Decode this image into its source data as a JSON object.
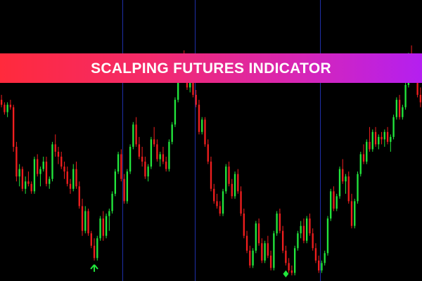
{
  "banner": {
    "title": "SCALPING FUTURES INDICATOR"
  },
  "colors": {
    "background": "#000000",
    "bull": "#22e63c",
    "bear": "#f01e1e",
    "separator": "#1f2fa8",
    "arrow_up": "#22e63c"
  },
  "chart_data": {
    "type": "candlestick",
    "grid": false,
    "ylim": [
      0,
      100
    ],
    "separator_candles": [
      41,
      65,
      107
    ],
    "candles": [
      {
        "o": 71,
        "h": 73,
        "l": 68,
        "c": 69
      },
      {
        "o": 69,
        "h": 70,
        "l": 65,
        "c": 66
      },
      {
        "o": 66,
        "h": 70,
        "l": 64,
        "c": 69
      },
      {
        "o": 69,
        "h": 71,
        "l": 67,
        "c": 68
      },
      {
        "o": 68,
        "h": 69,
        "l": 50,
        "c": 52
      },
      {
        "o": 52,
        "h": 54,
        "l": 38,
        "c": 40
      },
      {
        "o": 40,
        "h": 45,
        "l": 36,
        "c": 43
      },
      {
        "o": 43,
        "h": 44,
        "l": 34,
        "c": 35
      },
      {
        "o": 35,
        "h": 40,
        "l": 33,
        "c": 38
      },
      {
        "o": 38,
        "h": 42,
        "l": 36,
        "c": 37
      },
      {
        "o": 37,
        "h": 38,
        "l": 33,
        "c": 34
      },
      {
        "o": 34,
        "h": 48,
        "l": 33,
        "c": 47
      },
      {
        "o": 47,
        "h": 49,
        "l": 40,
        "c": 41
      },
      {
        "o": 41,
        "h": 44,
        "l": 36,
        "c": 43
      },
      {
        "o": 43,
        "h": 48,
        "l": 42,
        "c": 46
      },
      {
        "o": 46,
        "h": 48,
        "l": 36,
        "c": 37
      },
      {
        "o": 37,
        "h": 40,
        "l": 35,
        "c": 39
      },
      {
        "o": 39,
        "h": 54,
        "l": 38,
        "c": 53
      },
      {
        "o": 53,
        "h": 57,
        "l": 48,
        "c": 50
      },
      {
        "o": 50,
        "h": 52,
        "l": 45,
        "c": 48
      },
      {
        "o": 48,
        "h": 50,
        "l": 43,
        "c": 44
      },
      {
        "o": 44,
        "h": 46,
        "l": 39,
        "c": 42
      },
      {
        "o": 42,
        "h": 44,
        "l": 36,
        "c": 37
      },
      {
        "o": 37,
        "h": 39,
        "l": 33,
        "c": 35
      },
      {
        "o": 35,
        "h": 45,
        "l": 34,
        "c": 43
      },
      {
        "o": 43,
        "h": 46,
        "l": 35,
        "c": 36
      },
      {
        "o": 36,
        "h": 38,
        "l": 27,
        "c": 28
      },
      {
        "o": 28,
        "h": 31,
        "l": 16,
        "c": 18
      },
      {
        "o": 18,
        "h": 28,
        "l": 17,
        "c": 26
      },
      {
        "o": 26,
        "h": 27,
        "l": 16,
        "c": 17
      },
      {
        "o": 17,
        "h": 18,
        "l": 11,
        "c": 12
      },
      {
        "o": 12,
        "h": 15,
        "l": 6,
        "c": 7
      },
      {
        "o": 7,
        "h": 16,
        "l": 6,
        "c": 15
      },
      {
        "o": 15,
        "h": 24,
        "l": 14,
        "c": 23
      },
      {
        "o": 23,
        "h": 26,
        "l": 14,
        "c": 16
      },
      {
        "o": 16,
        "h": 25,
        "l": 15,
        "c": 24
      },
      {
        "o": 24,
        "h": 27,
        "l": 18,
        "c": 26
      },
      {
        "o": 26,
        "h": 34,
        "l": 25,
        "c": 33
      },
      {
        "o": 33,
        "h": 43,
        "l": 32,
        "c": 42
      },
      {
        "o": 42,
        "h": 50,
        "l": 41,
        "c": 49
      },
      {
        "o": 49,
        "h": 51,
        "l": 38,
        "c": 39
      },
      {
        "o": 39,
        "h": 41,
        "l": 29,
        "c": 30
      },
      {
        "o": 30,
        "h": 43,
        "l": 29,
        "c": 42
      },
      {
        "o": 42,
        "h": 53,
        "l": 41,
        "c": 52
      },
      {
        "o": 52,
        "h": 62,
        "l": 51,
        "c": 61
      },
      {
        "o": 61,
        "h": 64,
        "l": 52,
        "c": 53
      },
      {
        "o": 53,
        "h": 56,
        "l": 47,
        "c": 48
      },
      {
        "o": 48,
        "h": 52,
        "l": 44,
        "c": 46
      },
      {
        "o": 46,
        "h": 48,
        "l": 39,
        "c": 40
      },
      {
        "o": 40,
        "h": 45,
        "l": 38,
        "c": 44
      },
      {
        "o": 44,
        "h": 56,
        "l": 43,
        "c": 55
      },
      {
        "o": 55,
        "h": 60,
        "l": 52,
        "c": 53
      },
      {
        "o": 53,
        "h": 55,
        "l": 46,
        "c": 47
      },
      {
        "o": 47,
        "h": 50,
        "l": 44,
        "c": 49
      },
      {
        "o": 49,
        "h": 52,
        "l": 45,
        "c": 46
      },
      {
        "o": 46,
        "h": 48,
        "l": 42,
        "c": 43
      },
      {
        "o": 43,
        "h": 55,
        "l": 42,
        "c": 54
      },
      {
        "o": 54,
        "h": 62,
        "l": 53,
        "c": 61
      },
      {
        "o": 61,
        "h": 72,
        "l": 60,
        "c": 71
      },
      {
        "o": 71,
        "h": 80,
        "l": 70,
        "c": 79
      },
      {
        "o": 79,
        "h": 88,
        "l": 78,
        "c": 87
      },
      {
        "o": 87,
        "h": 91,
        "l": 78,
        "c": 79
      },
      {
        "o": 79,
        "h": 82,
        "l": 75,
        "c": 76
      },
      {
        "o": 76,
        "h": 80,
        "l": 74,
        "c": 78
      },
      {
        "o": 78,
        "h": 81,
        "l": 72,
        "c": 73
      },
      {
        "o": 73,
        "h": 75,
        "l": 68,
        "c": 69
      },
      {
        "o": 69,
        "h": 71,
        "l": 57,
        "c": 58
      },
      {
        "o": 58,
        "h": 64,
        "l": 57,
        "c": 63
      },
      {
        "o": 63,
        "h": 64,
        "l": 52,
        "c": 53
      },
      {
        "o": 53,
        "h": 55,
        "l": 45,
        "c": 46
      },
      {
        "o": 46,
        "h": 48,
        "l": 34,
        "c": 35
      },
      {
        "o": 35,
        "h": 37,
        "l": 29,
        "c": 30
      },
      {
        "o": 30,
        "h": 33,
        "l": 27,
        "c": 28
      },
      {
        "o": 28,
        "h": 30,
        "l": 24,
        "c": 25
      },
      {
        "o": 25,
        "h": 35,
        "l": 24,
        "c": 34
      },
      {
        "o": 34,
        "h": 45,
        "l": 33,
        "c": 44
      },
      {
        "o": 44,
        "h": 46,
        "l": 36,
        "c": 37
      },
      {
        "o": 37,
        "h": 39,
        "l": 31,
        "c": 32
      },
      {
        "o": 32,
        "h": 42,
        "l": 31,
        "c": 41
      },
      {
        "o": 41,
        "h": 43,
        "l": 33,
        "c": 34
      },
      {
        "o": 34,
        "h": 36,
        "l": 24,
        "c": 25
      },
      {
        "o": 25,
        "h": 27,
        "l": 15,
        "c": 16
      },
      {
        "o": 16,
        "h": 18,
        "l": 9,
        "c": 10
      },
      {
        "o": 10,
        "h": 12,
        "l": 3,
        "c": 4
      },
      {
        "o": 4,
        "h": 11,
        "l": 3,
        "c": 10
      },
      {
        "o": 10,
        "h": 22,
        "l": 9,
        "c": 21
      },
      {
        "o": 21,
        "h": 23,
        "l": 12,
        "c": 13
      },
      {
        "o": 13,
        "h": 15,
        "l": 5,
        "c": 6
      },
      {
        "o": 6,
        "h": 14,
        "l": 5,
        "c": 13
      },
      {
        "o": 13,
        "h": 16,
        "l": 7,
        "c": 8
      },
      {
        "o": 8,
        "h": 10,
        "l": 2,
        "c": 3
      },
      {
        "o": 3,
        "h": 18,
        "l": 2,
        "c": 17
      },
      {
        "o": 17,
        "h": 26,
        "l": 16,
        "c": 25
      },
      {
        "o": 25,
        "h": 27,
        "l": 17,
        "c": 18
      },
      {
        "o": 18,
        "h": 20,
        "l": 9,
        "c": 10
      },
      {
        "o": 10,
        "h": 12,
        "l": 4,
        "c": 5
      },
      {
        "o": 5,
        "h": 7,
        "l": 1,
        "c": 2
      },
      {
        "o": 2,
        "h": 4,
        "l": 0,
        "c": 1
      },
      {
        "o": 1,
        "h": 12,
        "l": 0,
        "c": 11
      },
      {
        "o": 11,
        "h": 18,
        "l": 10,
        "c": 17
      },
      {
        "o": 17,
        "h": 22,
        "l": 15,
        "c": 20
      },
      {
        "o": 20,
        "h": 23,
        "l": 13,
        "c": 14
      },
      {
        "o": 14,
        "h": 24,
        "l": 13,
        "c": 23
      },
      {
        "o": 23,
        "h": 25,
        "l": 16,
        "c": 17
      },
      {
        "o": 17,
        "h": 19,
        "l": 10,
        "c": 11
      },
      {
        "o": 11,
        "h": 13,
        "l": 5,
        "c": 6
      },
      {
        "o": 6,
        "h": 8,
        "l": 1,
        "c": 2
      },
      {
        "o": 2,
        "h": 6,
        "l": 1,
        "c": 5
      },
      {
        "o": 5,
        "h": 10,
        "l": 4,
        "c": 9
      },
      {
        "o": 9,
        "h": 24,
        "l": 8,
        "c": 23
      },
      {
        "o": 23,
        "h": 35,
        "l": 22,
        "c": 34
      },
      {
        "o": 34,
        "h": 36,
        "l": 26,
        "c": 27
      },
      {
        "o": 27,
        "h": 33,
        "l": 26,
        "c": 32
      },
      {
        "o": 32,
        "h": 44,
        "l": 31,
        "c": 43
      },
      {
        "o": 43,
        "h": 47,
        "l": 37,
        "c": 38
      },
      {
        "o": 38,
        "h": 41,
        "l": 33,
        "c": 40
      },
      {
        "o": 40,
        "h": 42,
        "l": 29,
        "c": 30
      },
      {
        "o": 30,
        "h": 33,
        "l": 19,
        "c": 20
      },
      {
        "o": 20,
        "h": 31,
        "l": 19,
        "c": 30
      },
      {
        "o": 30,
        "h": 42,
        "l": 29,
        "c": 41
      },
      {
        "o": 41,
        "h": 50,
        "l": 40,
        "c": 49
      },
      {
        "o": 49,
        "h": 53,
        "l": 45,
        "c": 46
      },
      {
        "o": 46,
        "h": 55,
        "l": 45,
        "c": 54
      },
      {
        "o": 54,
        "h": 60,
        "l": 50,
        "c": 51
      },
      {
        "o": 51,
        "h": 59,
        "l": 50,
        "c": 58
      },
      {
        "o": 58,
        "h": 60,
        "l": 52,
        "c": 53
      },
      {
        "o": 53,
        "h": 57,
        "l": 51,
        "c": 56
      },
      {
        "o": 56,
        "h": 58,
        "l": 53,
        "c": 55
      },
      {
        "o": 55,
        "h": 59,
        "l": 52,
        "c": 58
      },
      {
        "o": 58,
        "h": 60,
        "l": 53,
        "c": 54
      },
      {
        "o": 54,
        "h": 57,
        "l": 50,
        "c": 56
      },
      {
        "o": 56,
        "h": 65,
        "l": 55,
        "c": 64
      },
      {
        "o": 64,
        "h": 72,
        "l": 63,
        "c": 71
      },
      {
        "o": 71,
        "h": 73,
        "l": 63,
        "c": 64
      },
      {
        "o": 64,
        "h": 69,
        "l": 63,
        "c": 68
      },
      {
        "o": 68,
        "h": 78,
        "l": 67,
        "c": 77
      },
      {
        "o": 77,
        "h": 90,
        "l": 76,
        "c": 89
      },
      {
        "o": 89,
        "h": 93,
        "l": 83,
        "c": 84
      },
      {
        "o": 84,
        "h": 88,
        "l": 79,
        "c": 80
      },
      {
        "o": 80,
        "h": 83,
        "l": 72,
        "c": 73
      },
      {
        "o": 73,
        "h": 76,
        "l": 68,
        "c": 70
      }
    ],
    "signals": [
      {
        "candle": 31,
        "type": "buy-arrow"
      },
      {
        "candle": 95,
        "type": "buy-diamond"
      }
    ]
  }
}
